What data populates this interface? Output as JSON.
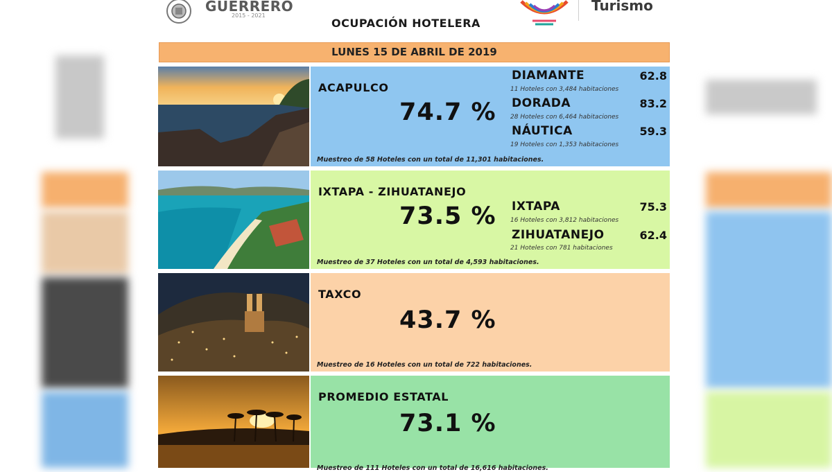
{
  "header": {
    "gov_name": "GUERRERO",
    "gov_years": "2015 - 2021",
    "title": "OCUPACIÓN HOTELERA",
    "tourism_word": "Turismo"
  },
  "date_label": "LUNES 15 DE ABRIL DE 2019",
  "regions": [
    {
      "name": "ACAPULCO",
      "percent": "74.7 %",
      "zones": [
        {
          "name": "DIAMANTE",
          "value": "62.8",
          "note": "11 Hoteles con 3,484 habitaciones"
        },
        {
          "name": "DORADA",
          "value": "83.2",
          "note": "28 Hoteles con 6,464 habitaciones"
        },
        {
          "name": "NÁUTICA",
          "value": "59.3",
          "note": "19 Hoteles con 1,353 habitaciones"
        }
      ],
      "sample": "Muestreo de 58 Hoteles con un total de 11,301 habitaciones.",
      "color": "#8fc6f0"
    },
    {
      "name": "IXTAPA - ZIHUATANEJO",
      "percent": "73.5 %",
      "zones": [
        {
          "name": "IXTAPA",
          "value": "75.3",
          "note": "16 Hoteles con 3,812 habitaciones"
        },
        {
          "name": "ZIHUATANEJO",
          "value": "62.4",
          "note": "21 Hoteles con 781 habitaciones"
        }
      ],
      "sample": "Muestreo de 37 Hoteles con un total de 4,593 habitaciones.",
      "color": "#d8f7a4"
    },
    {
      "name": "TAXCO",
      "percent": "43.7 %",
      "zones": [],
      "sample": "Muestreo de 16 Hoteles con un total de 722 habitaciones.",
      "color": "#fcd2a8"
    },
    {
      "name": "PROMEDIO ESTATAL",
      "percent": "73.1 %",
      "zones": [],
      "sample": "Muestreo de 111 Hoteles con un total de 16,616 habitaciones.",
      "color": "#98e2a6"
    }
  ],
  "icons": [
    "state-seal-icon",
    "turismo-logo-icon"
  ]
}
